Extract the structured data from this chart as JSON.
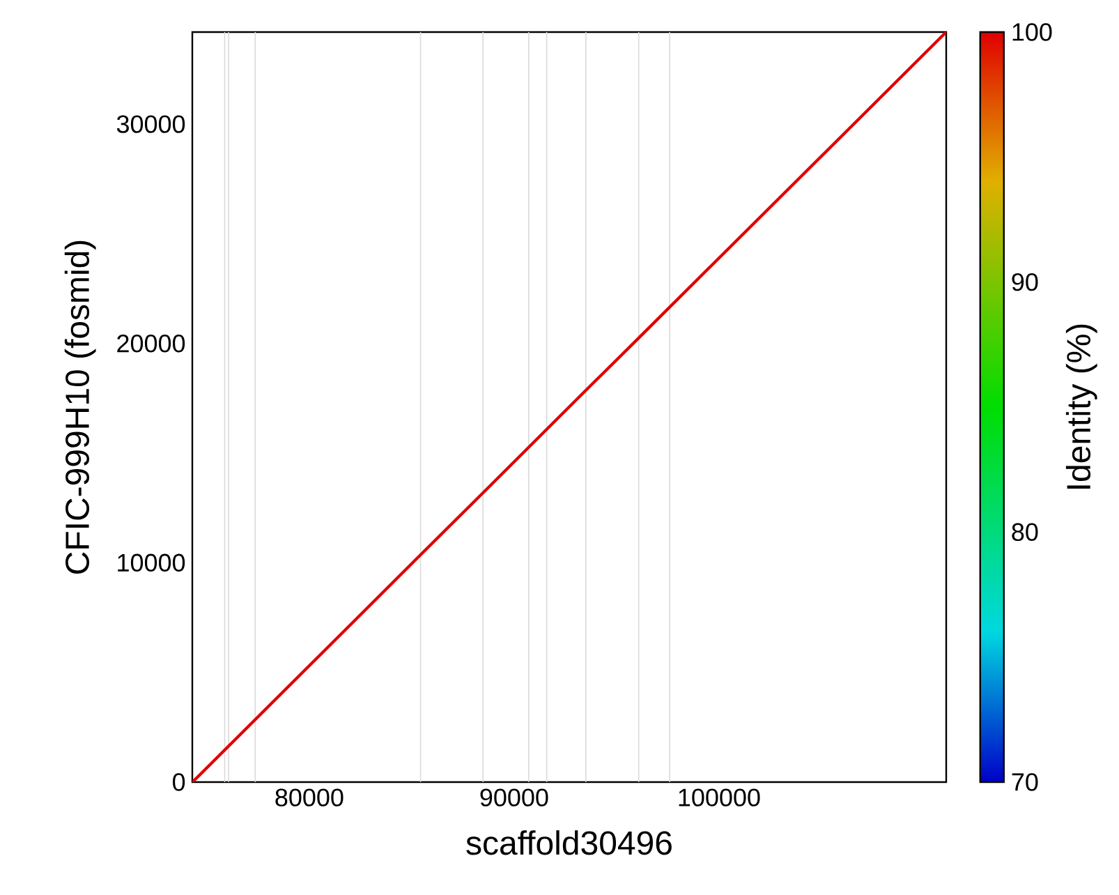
{
  "chart_data": {
    "type": "line",
    "xlabel": "scaffold30496",
    "ylabel": "CFIC-999H10 (fosmid)",
    "clabel": "Identity (%)",
    "series": [
      {
        "color": "#e00000",
        "x": [
          74300,
          85430,
          88480,
          93500,
          96080,
          111090
        ],
        "values": [
          0,
          10360,
          13190,
          17860,
          20250,
          34200
        ]
      }
    ],
    "xlim": [
      74290,
      111090
    ],
    "ylim": [
      0,
      34200
    ],
    "xticks": [
      80000,
      90000,
      100000
    ],
    "yticks": [
      0,
      10000,
      20000,
      30000
    ],
    "clim": [
      70,
      100
    ],
    "cticks": [
      70,
      80,
      90,
      100
    ],
    "ref_lines": [
      {
        "axis": "x",
        "value": 75870,
        "color": "#d9d9d9"
      },
      {
        "axis": "x",
        "value": 76060,
        "color": "#d9d9d9"
      },
      {
        "axis": "x",
        "value": 77360,
        "color": "#d9d9d9"
      },
      {
        "axis": "x",
        "value": 85430,
        "color": "#d9d9d9"
      },
      {
        "axis": "x",
        "value": 88480,
        "color": "#d9d9d9"
      },
      {
        "axis": "x",
        "value": 90710,
        "color": "#d9d9d9"
      },
      {
        "axis": "x",
        "value": 91590,
        "color": "#d9d9d9"
      },
      {
        "axis": "x",
        "value": 93500,
        "color": "#d9d9d9"
      },
      {
        "axis": "x",
        "value": 96080,
        "color": "#d9d9d9"
      },
      {
        "axis": "x",
        "value": 97590,
        "color": "#d9d9d9"
      }
    ],
    "marker": "none",
    "line_style": "solid"
  }
}
